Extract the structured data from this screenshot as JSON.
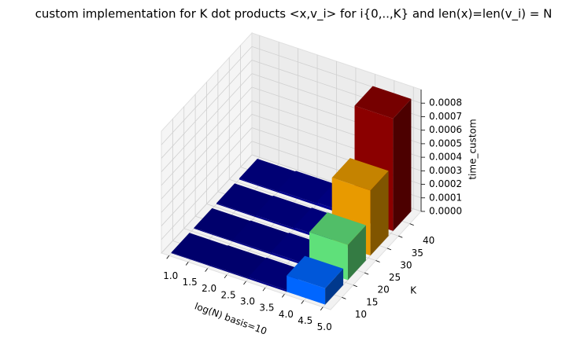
{
  "chart_data": {
    "type": "bar3d",
    "title": "custom implementation for K dot products <x,v_i> for i{0,..,K} and len(x)=len(v_i) = N",
    "xlabel": "log(N) basis=10",
    "ylabel": "K",
    "zlabel": "time_custom",
    "x": [
      1,
      2,
      3,
      4
    ],
    "y": [
      10,
      20,
      30,
      40
    ],
    "values": [
      [
        5e-06,
        8e-06,
        1.2e-05,
        0.00012
      ],
      [
        6e-06,
        1e-05,
        1.5e-05,
        0.00026
      ],
      [
        7e-06,
        1.2e-05,
        1.8e-05,
        0.00048
      ],
      [
        8e-06,
        1.4e-05,
        2e-05,
        0.00083
      ]
    ],
    "colors": [
      [
        "#00007f",
        "#00007f",
        "#000088",
        "#0066ff"
      ],
      [
        "#00007f",
        "#000084",
        "#00008c",
        "#5fe07a"
      ],
      [
        "#000084",
        "#000088",
        "#000090",
        "#e89a00"
      ],
      [
        "#000088",
        "#00008c",
        "#000094",
        "#8b0000"
      ]
    ],
    "xlim": [
      0.8,
      5.2
    ],
    "ylim": [
      5,
      45
    ],
    "zlim": [
      0,
      0.0009
    ],
    "xticks": [
      {
        "value": 1,
        "label": "1.0"
      },
      {
        "value": 1.5,
        "label": "1.5"
      },
      {
        "value": 2,
        "label": "2.0"
      },
      {
        "value": 2.5,
        "label": "2.5"
      },
      {
        "value": 3,
        "label": "3.0"
      },
      {
        "value": 3.5,
        "label": "3.5"
      },
      {
        "value": 4,
        "label": "4.0"
      },
      {
        "value": 4.5,
        "label": "4.5"
      },
      {
        "value": 5,
        "label": "5.0"
      }
    ],
    "yticks": [
      10,
      15,
      20,
      25,
      30,
      35,
      40
    ],
    "zticks": [
      {
        "value": 0,
        "label": "0.0000"
      },
      {
        "value": 0.0001,
        "label": "0.0001"
      },
      {
        "value": 0.0002,
        "label": "0.0002"
      },
      {
        "value": 0.0003,
        "label": "0.0003"
      },
      {
        "value": 0.0004,
        "label": "0.0004"
      },
      {
        "value": 0.0005,
        "label": "0.0005"
      },
      {
        "value": 0.0006,
        "label": "0.0006"
      },
      {
        "value": 0.0007,
        "label": "0.0007"
      },
      {
        "value": 0.0008,
        "label": "0.0008"
      }
    ],
    "grid": true
  }
}
